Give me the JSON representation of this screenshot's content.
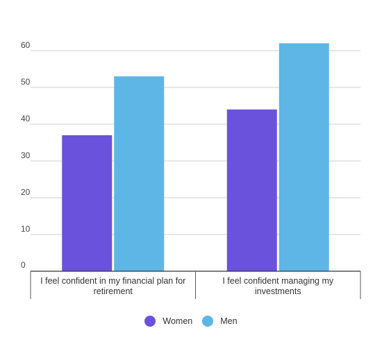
{
  "chart_data": {
    "type": "bar",
    "categories": [
      [
        "I feel confident in my financial plan for",
        "retirement"
      ],
      [
        "I feel confident managing my",
        "investments"
      ]
    ],
    "series": [
      {
        "name": "Women",
        "color": "#6b52dc",
        "values": [
          37,
          44
        ]
      },
      {
        "name": "Men",
        "color": "#5db6e6",
        "values": [
          53,
          62
        ]
      }
    ],
    "yticks": [
      0,
      10,
      20,
      30,
      40,
      50,
      60
    ],
    "ylim": [
      0,
      60
    ],
    "grid": true,
    "legend_position": "bottom"
  }
}
